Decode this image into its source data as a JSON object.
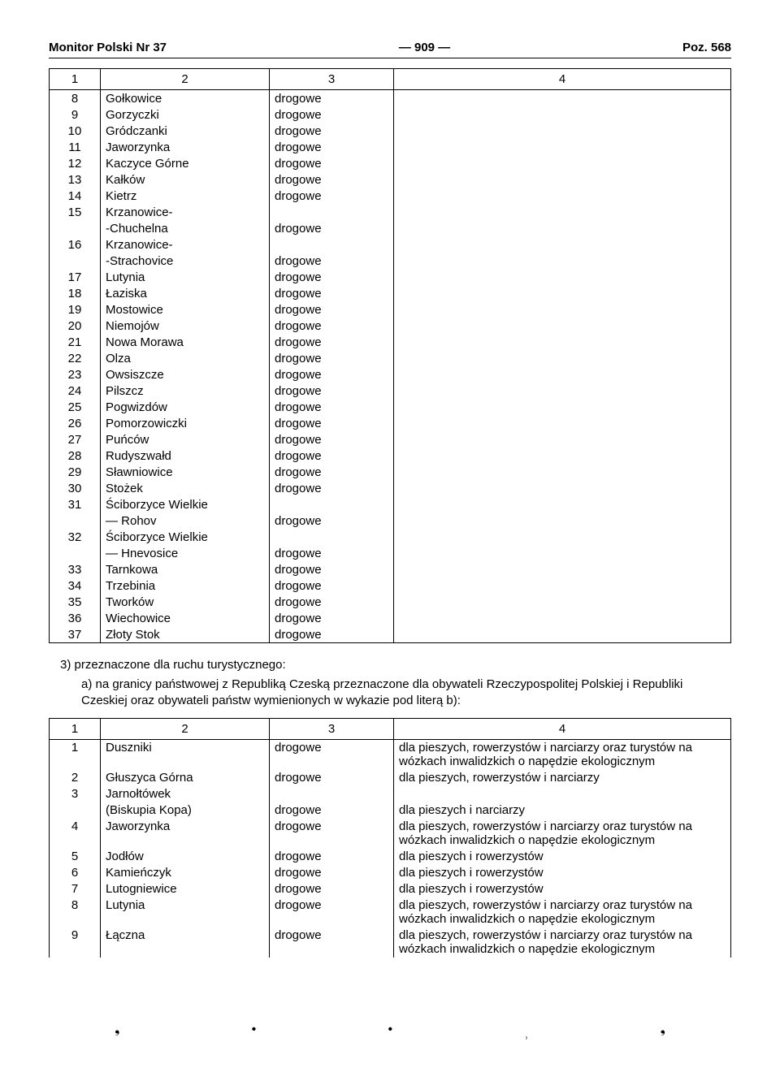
{
  "header": {
    "left": "Monitor Polski Nr 37",
    "center": "— 909 —",
    "right": "Poz. 568"
  },
  "table1": {
    "cols": [
      "1",
      "2",
      "3",
      "4"
    ],
    "rows": [
      {
        "n": "8",
        "name": "Gołkowice",
        "type": "drogowe",
        "note": ""
      },
      {
        "n": "9",
        "name": "Gorzyczki",
        "type": "drogowe",
        "note": ""
      },
      {
        "n": "10",
        "name": "Gródczanki",
        "type": "drogowe",
        "note": ""
      },
      {
        "n": "11",
        "name": "Jaworzynka",
        "type": "drogowe",
        "note": ""
      },
      {
        "n": "12",
        "name": "Kaczyce Górne",
        "type": "drogowe",
        "note": ""
      },
      {
        "n": "13",
        "name": "Kałków",
        "type": "drogowe",
        "note": ""
      },
      {
        "n": "14",
        "name": "Kietrz",
        "type": "drogowe",
        "note": ""
      },
      {
        "n": "15",
        "name": "Krzanowice-\n-Chuchelna",
        "type": "drogowe",
        "note": ""
      },
      {
        "n": "16",
        "name": "Krzanowice-\n-Strachovice",
        "type": "drogowe",
        "note": ""
      },
      {
        "n": "17",
        "name": "Lutynia",
        "type": "drogowe",
        "note": ""
      },
      {
        "n": "18",
        "name": "Łaziska",
        "type": "drogowe",
        "note": ""
      },
      {
        "n": "19",
        "name": "Mostowice",
        "type": "drogowe",
        "note": ""
      },
      {
        "n": "20",
        "name": "Niemojów",
        "type": "drogowe",
        "note": ""
      },
      {
        "n": "21",
        "name": "Nowa Morawa",
        "type": "drogowe",
        "note": ""
      },
      {
        "n": "22",
        "name": "Olza",
        "type": "drogowe",
        "note": ""
      },
      {
        "n": "23",
        "name": "Owsiszcze",
        "type": "drogowe",
        "note": ""
      },
      {
        "n": "24",
        "name": "Pilszcz",
        "type": "drogowe",
        "note": ""
      },
      {
        "n": "25",
        "name": "Pogwizdów",
        "type": "drogowe",
        "note": ""
      },
      {
        "n": "26",
        "name": "Pomorzowiczki",
        "type": "drogowe",
        "note": ""
      },
      {
        "n": "27",
        "name": "Puńców",
        "type": "drogowe",
        "note": ""
      },
      {
        "n": "28",
        "name": "Rudyszwałd",
        "type": "drogowe",
        "note": ""
      },
      {
        "n": "29",
        "name": "Sławniowice",
        "type": "drogowe",
        "note": ""
      },
      {
        "n": "30",
        "name": "Stożek",
        "type": "drogowe",
        "note": ""
      },
      {
        "n": "31",
        "name": "Ściborzyce Wielkie\n— Rohov",
        "type": "drogowe",
        "note": ""
      },
      {
        "n": "32",
        "name": "Ściborzyce Wielkie\n— Hnevosice",
        "type": "drogowe",
        "note": ""
      },
      {
        "n": "33",
        "name": "Tarnkowa",
        "type": "drogowe",
        "note": ""
      },
      {
        "n": "34",
        "name": "Trzebinia",
        "type": "drogowe",
        "note": ""
      },
      {
        "n": "35",
        "name": "Tworków",
        "type": "drogowe",
        "note": ""
      },
      {
        "n": "36",
        "name": "Wiechowice",
        "type": "drogowe",
        "note": ""
      },
      {
        "n": "37",
        "name": "Złoty Stok",
        "type": "drogowe",
        "note": ""
      }
    ]
  },
  "paragraphs": {
    "p3": "3) przeznaczone dla ruchu turystycznego:",
    "p3a": "a) na granicy państwowej z Republiką Czeską przeznaczone dla obywateli Rzeczypospolitej Polskiej i Republiki Czeskiej oraz obywateli państw wymienionych w wykazie pod literą b):"
  },
  "table2": {
    "cols": [
      "1",
      "2",
      "3",
      "4"
    ],
    "rows": [
      {
        "n": "1",
        "name": "Duszniki",
        "type": "drogowe",
        "note": "dla pieszych, rowerzystów i narciarzy oraz turystów na wózkach inwalidzkich o napędzie ekologicznym"
      },
      {
        "n": "2",
        "name": "Głuszyca Górna",
        "type": "drogowe",
        "note": "dla pieszych, rowerzystów i narciarzy"
      },
      {
        "n": "3",
        "name": "Jarnołtówek\n(Biskupia Kopa)",
        "type": "drogowe",
        "note": "dla pieszych i narciarzy"
      },
      {
        "n": "4",
        "name": "Jaworzynka",
        "type": "drogowe",
        "note": "dla pieszych, rowerzystów i narciarzy oraz turystów na wózkach inwalidzkich o napędzie ekologicznym"
      },
      {
        "n": "5",
        "name": "Jodłów",
        "type": "drogowe",
        "note": "dla pieszych i rowerzystów"
      },
      {
        "n": "6",
        "name": "Kamieńczyk",
        "type": "drogowe",
        "note": "dla pieszych i rowerzystów"
      },
      {
        "n": "7",
        "name": "Lutogniewice",
        "type": "drogowe",
        "note": "dla pieszych i rowerzystów"
      },
      {
        "n": "8",
        "name": "Lutynia",
        "type": "drogowe",
        "note": "dla pieszych, rowerzystów i narciarzy oraz turystów na wózkach inwalidzkich o napędzie ekologicznym"
      },
      {
        "n": "9",
        "name": "Łączna",
        "type": "drogowe",
        "note": "dla pieszych, rowerzystów i narciarzy oraz turystów na wózkach inwalidzkich o napędzie ekologicznym"
      }
    ]
  }
}
